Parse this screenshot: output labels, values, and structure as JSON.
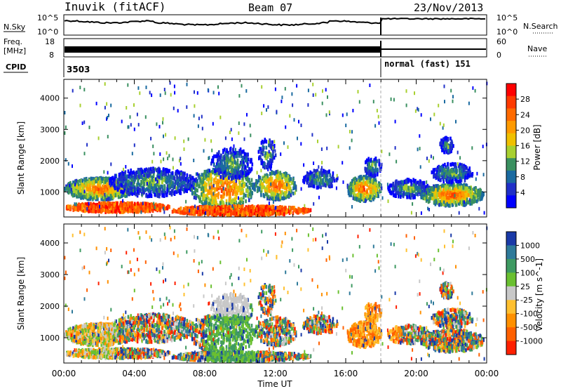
{
  "header": {
    "station": "Inuvik (fitACF)",
    "beam": "Beam 07",
    "date": "23/Nov/2013"
  },
  "left_labels": {
    "nsky": "N.Sky",
    "freq_line1": "Freq.",
    "freq_line2": "[MHz]",
    "cpid": "CPID"
  },
  "right_labels": {
    "nsearch": "N.Search",
    "nave": "Nave"
  },
  "ticks": {
    "noise_left_top": "10^5",
    "noise_left_bottom": "10^0",
    "noise_right_top": "10^5",
    "noise_right_bottom": "10^0",
    "freq_left_top": "18",
    "freq_left_bottom": "8",
    "nave_right_top": "60",
    "nave_right_bottom": "0"
  },
  "cpid": {
    "first": "3503",
    "second": "normal (fast) 151"
  },
  "power_scale": {
    "title": "Power [dB]",
    "ticks": [
      "28",
      "24",
      "20",
      "16",
      "12",
      "8",
      "4"
    ],
    "colors": [
      "#ff0000",
      "#ff3a00",
      "#ff6a00",
      "#ff9a00",
      "#f0c000",
      "#a8d030",
      "#3a9060",
      "#1a6aa0",
      "#2030c8",
      "#0000ff"
    ]
  },
  "velocity_scale": {
    "title": "Velocity [m s^-1]",
    "ticks": [
      "1000",
      "500",
      "100",
      "25",
      "-25",
      "-100",
      "-500",
      "-1000"
    ],
    "colors": [
      "#1a3aa8",
      "#2e7a9a",
      "#3e9a62",
      "#6ac030",
      "#c8c8c8",
      "#ffc030",
      "#ff9000",
      "#ff6000",
      "#ff2000"
    ]
  },
  "chart_data": [
    {
      "type": "heatmap",
      "name": "power",
      "ylabel": "Slant Range [km]",
      "ylim": [
        200,
        4600
      ],
      "yticks": [
        "1000",
        "2000",
        "3000",
        "4000"
      ],
      "xlim": [
        0,
        24
      ],
      "xticks": [
        "00:00",
        "04:00",
        "08:00",
        "12:00",
        "16:00",
        "20:00",
        "00:00"
      ]
    },
    {
      "type": "heatmap",
      "name": "velocity",
      "ylabel": "Slant Range [km]",
      "ylim": [
        200,
        4600
      ],
      "yticks": [
        "1000",
        "2000",
        "3000",
        "4000"
      ],
      "xlim": [
        0,
        24
      ],
      "xticks": [
        "00:00",
        "04:00",
        "08:00",
        "12:00",
        "16:00",
        "20:00",
        "00:00"
      ],
      "xlabel": "Time UT"
    }
  ]
}
